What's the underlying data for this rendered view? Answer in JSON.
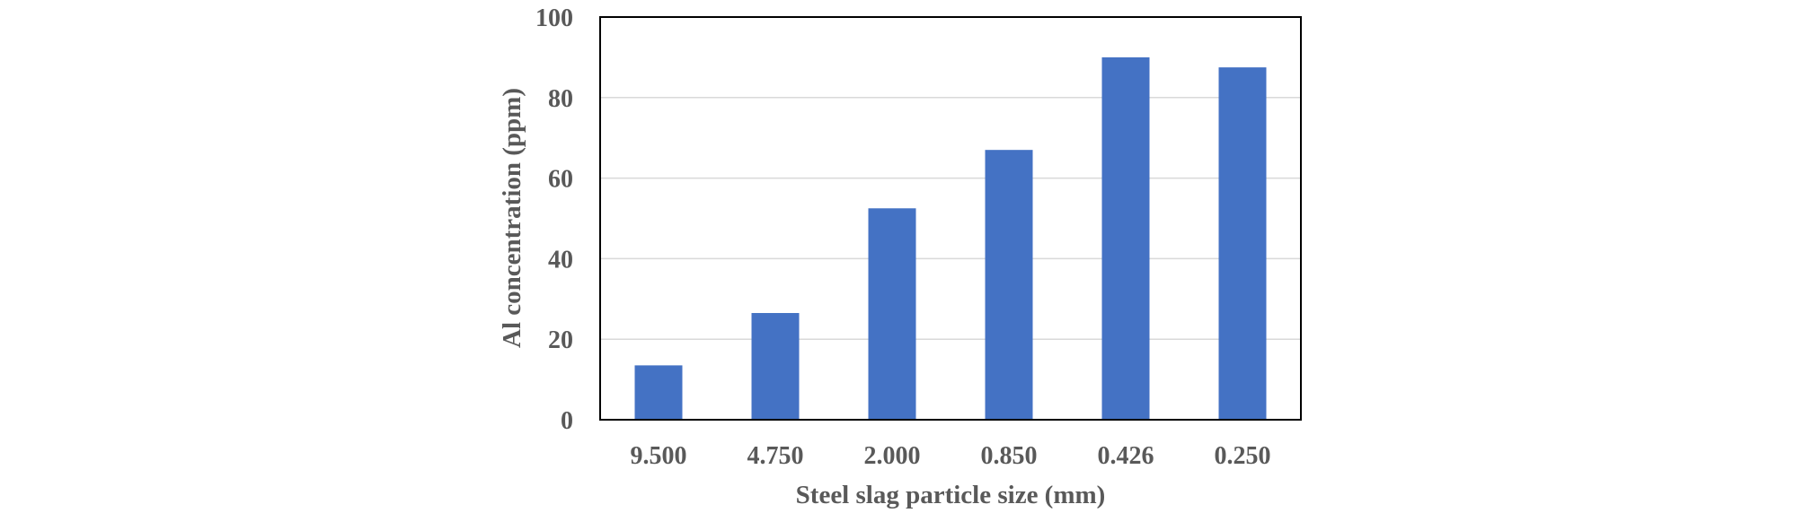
{
  "chart_data": {
    "type": "bar",
    "title": "",
    "xlabel": "Steel slag particle size (mm)",
    "ylabel": "Al concentration (ppm)",
    "categories": [
      "9.500",
      "4.750",
      "2.000",
      "0.850",
      "0.426",
      "0.250"
    ],
    "values": [
      13.5,
      26.5,
      52.5,
      67,
      90,
      87.5
    ],
    "ylim": [
      0,
      100
    ],
    "yticks": [
      "0",
      "20",
      "40",
      "60",
      "80",
      "100"
    ],
    "grid": true,
    "legend": "none",
    "bar_color": "#4472c4",
    "tick_color": "#595959"
  }
}
